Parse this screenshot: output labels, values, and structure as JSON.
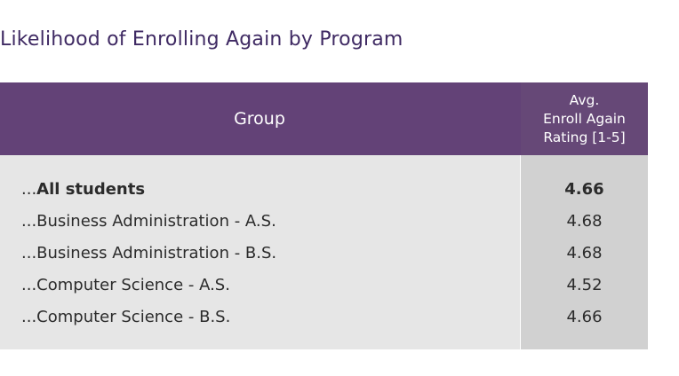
{
  "chart_data": {
    "type": "table",
    "title": "Likelihood of Enrolling Again by Program",
    "columns": [
      "Group",
      "Avg.\nEnroll Again\nRating [1-5]"
    ],
    "rows": [
      {
        "prefix": "...",
        "group": "All students",
        "rating": "4.66",
        "bold": true
      },
      {
        "prefix": "...",
        "group": "Business Administration - A.S.",
        "rating": "4.68",
        "bold": false
      },
      {
        "prefix": "...",
        "group": "Business Administration - B.S.",
        "rating": "4.68",
        "bold": false
      },
      {
        "prefix": "...",
        "group": "Computer Science - A.S.",
        "rating": "4.52",
        "bold": false
      },
      {
        "prefix": "...",
        "group": "Computer Science - B.S.",
        "rating": "4.66",
        "bold": false
      }
    ]
  },
  "colors": {
    "title": "#3f2a63",
    "header_bg": "#634277",
    "body_bg": "#e6e6e6",
    "rating_col_bg": "#d1d1d1"
  }
}
